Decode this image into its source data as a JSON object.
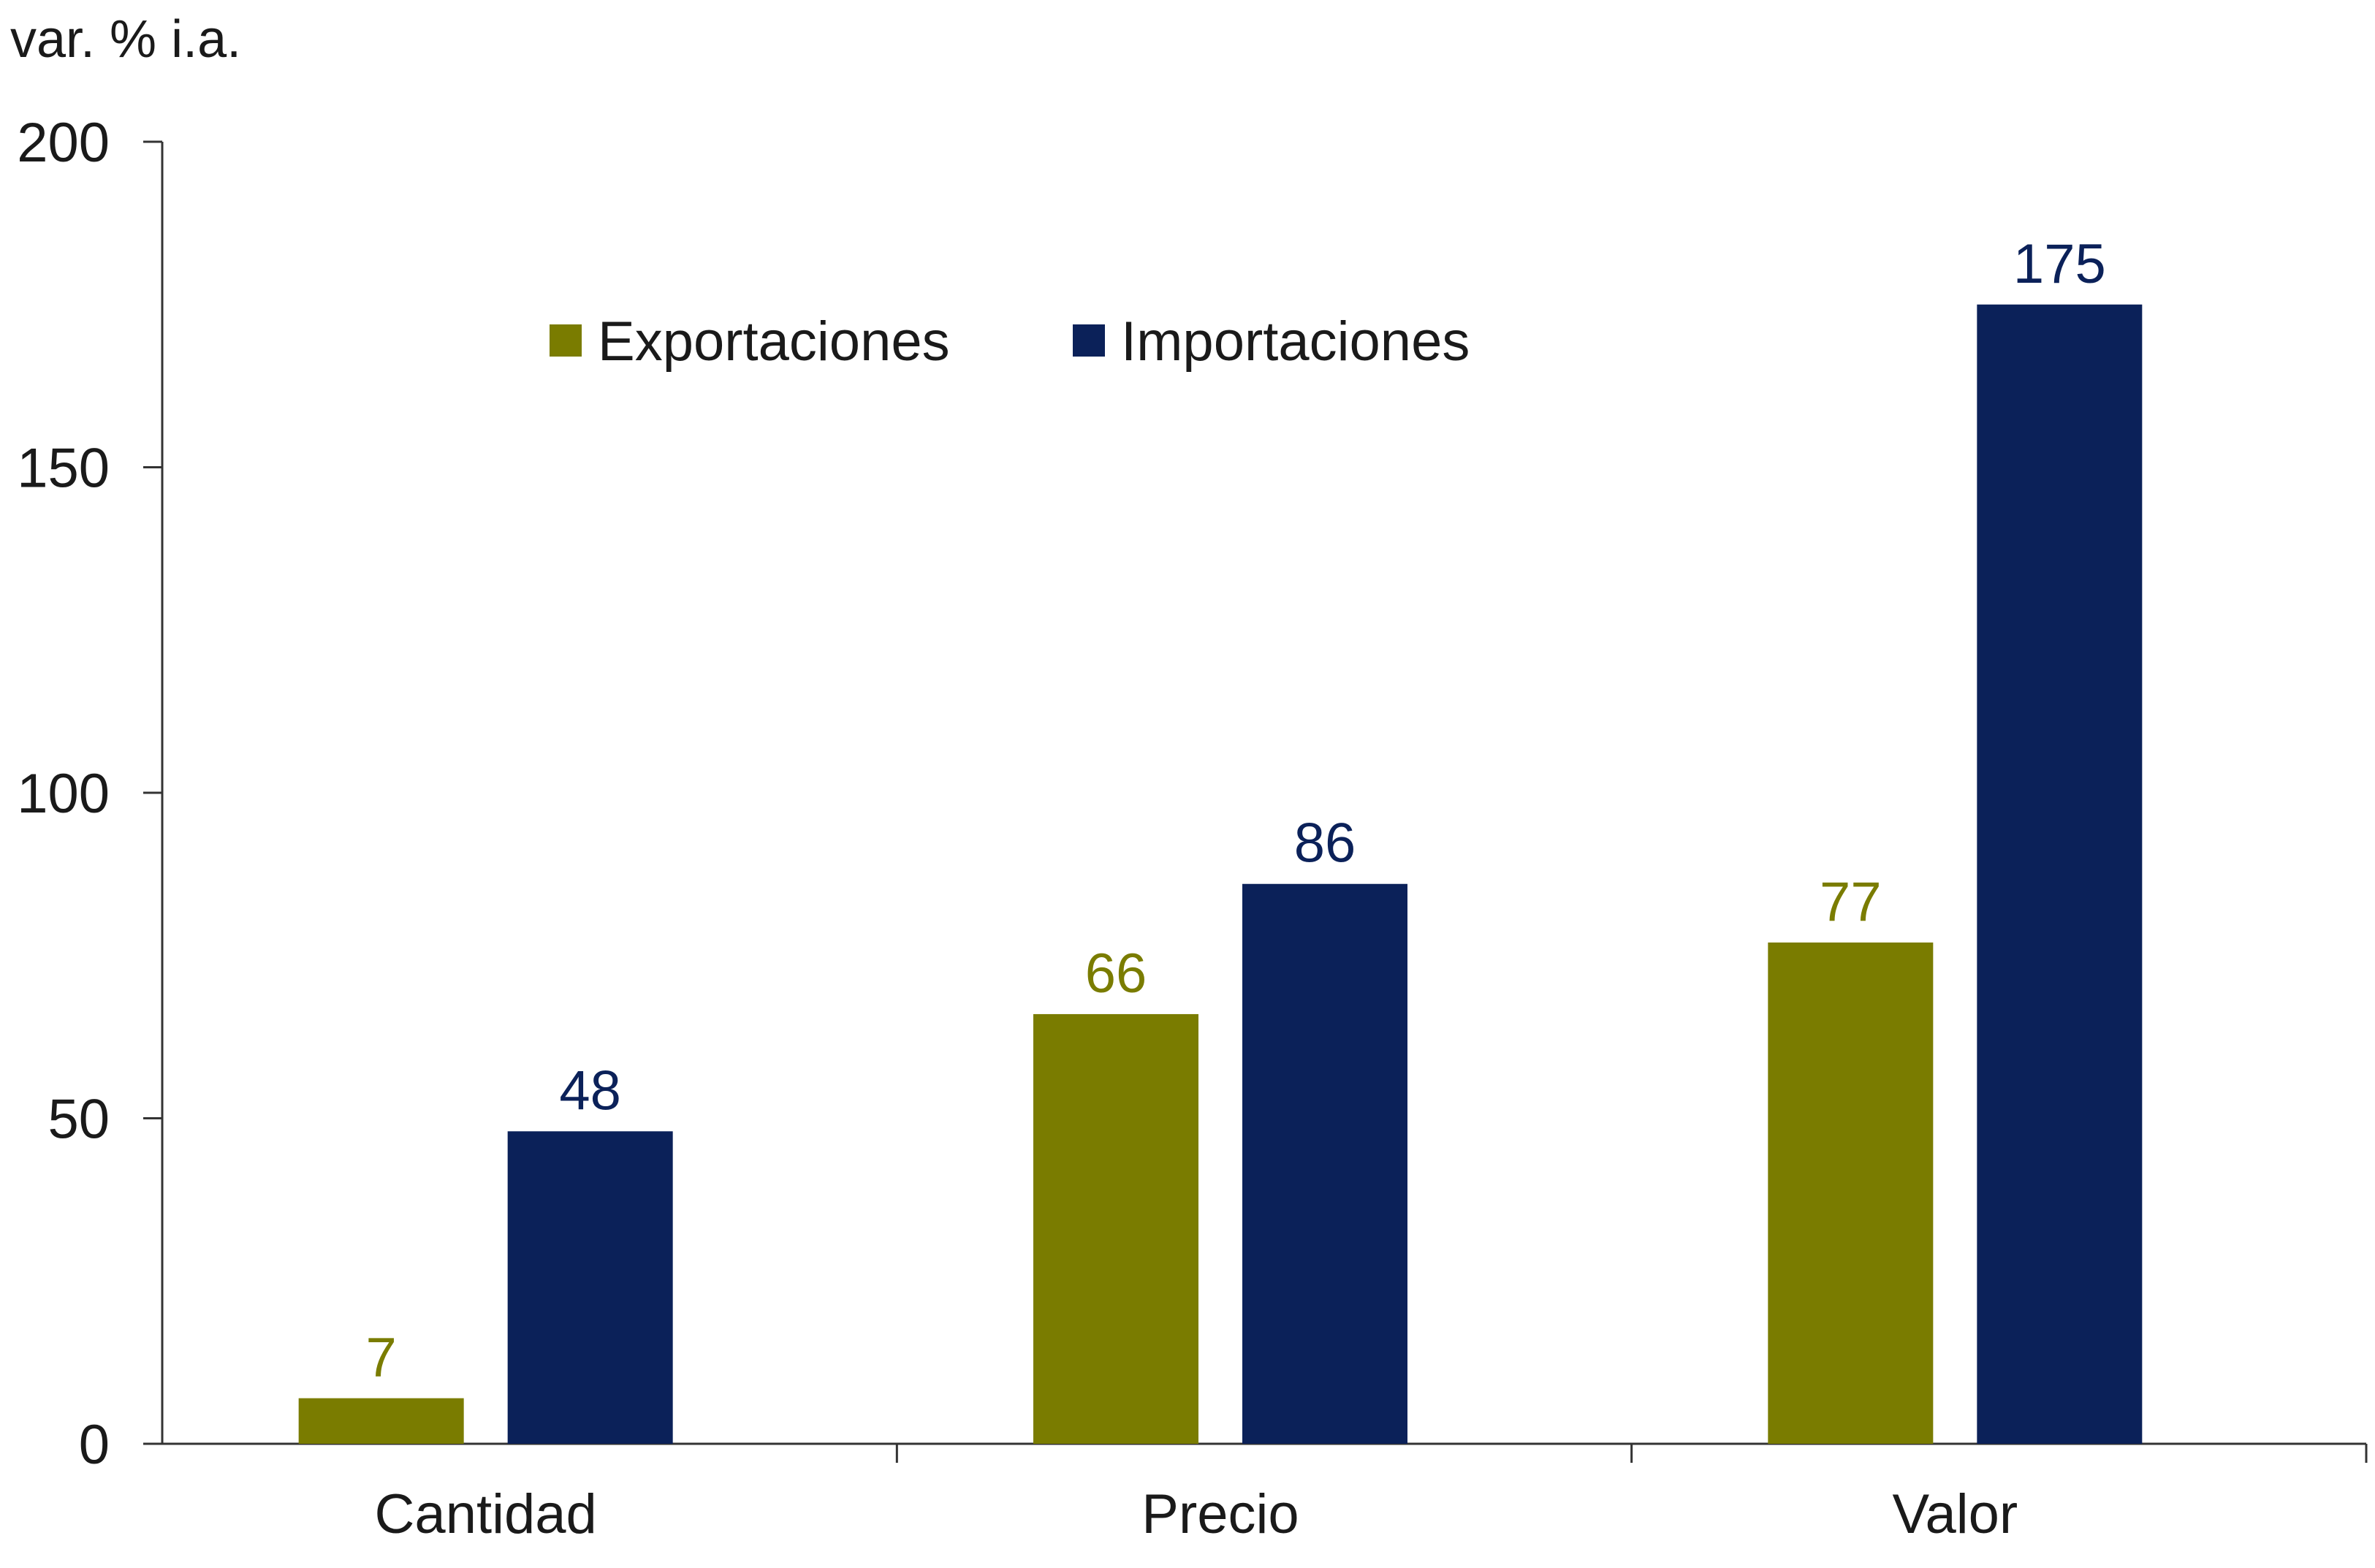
{
  "chart_data": {
    "type": "bar",
    "ylabel": "var. % i.a.",
    "categories": [
      "Cantidad",
      "Precio",
      "Valor"
    ],
    "series": [
      {
        "name": "Exportaciones",
        "values": [
          7,
          66,
          77
        ],
        "color": "#7a7c00"
      },
      {
        "name": "Importaciones",
        "values": [
          48,
          86,
          175
        ],
        "color": "#0b2159"
      }
    ],
    "ylim": [
      0,
      200
    ],
    "yticks": [
      0,
      50,
      100,
      150,
      200
    ],
    "data_labels": true,
    "grid": false,
    "legend_position": "top"
  }
}
